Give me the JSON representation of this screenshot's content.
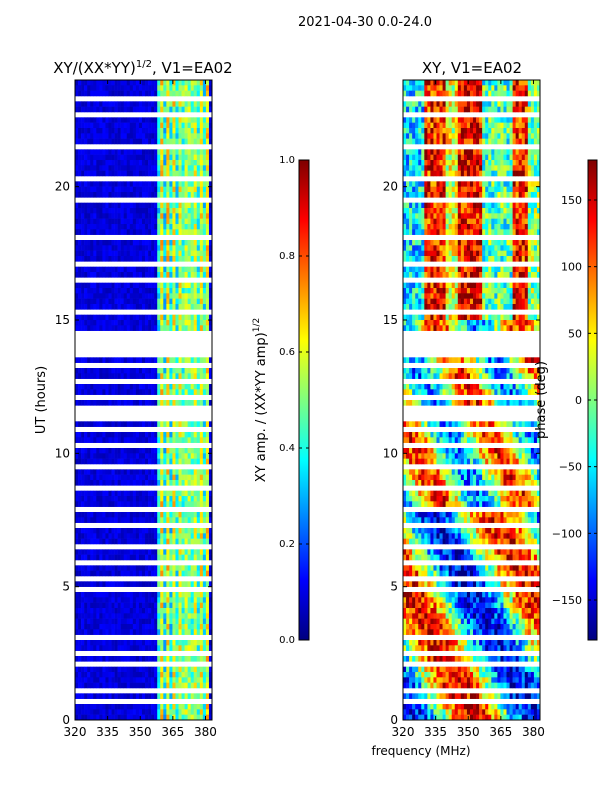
{
  "suptitle": "2021-04-30 0.0-24.0",
  "shared_xlabel": "frequency (MHz)",
  "chart_data": [
    {
      "type": "heatmap",
      "title_main": "XY/(XX*YY)",
      "title_sup": "1/2",
      "title_rest": ", V1=EA02",
      "ylabel": "UT (hours)",
      "xlim": [
        320,
        383
      ],
      "ylim": [
        0,
        24
      ],
      "xticks": [
        320,
        335,
        350,
        365,
        380
      ],
      "xtick_labels": [
        "320",
        "335",
        "350",
        "365",
        "380"
      ],
      "yticks": [
        0,
        5,
        10,
        15,
        20
      ],
      "ytick_labels": [
        "0",
        "5",
        "10",
        "15",
        "20"
      ],
      "colorbar": {
        "label_main": "XY amp. / (XX*YY amp)",
        "label_sup": "1/2",
        "range": [
          0.0,
          1.0
        ],
        "ticks": [
          0.0,
          0.2,
          0.4,
          0.6,
          0.8,
          1.0
        ],
        "tick_labels": [
          "0.0",
          "0.2",
          "0.4",
          "0.6",
          "0.8",
          "1.0"
        ],
        "colormap": "jet"
      },
      "data_gaps_hours": [
        [
          13.55,
          14.65
        ],
        [
          11.3,
          11.7
        ],
        [
          9.4,
          9.6
        ]
      ],
      "description_bands": [
        {
          "freq_range": [
            359,
            381
          ],
          "value_range": [
            0.3,
            0.65
          ]
        }
      ]
    },
    {
      "type": "heatmap",
      "title_main": "XY, V1=EA02",
      "ylabel": "",
      "xlim": [
        320,
        383
      ],
      "ylim": [
        0,
        24
      ],
      "xticks": [
        320,
        335,
        350,
        365,
        380
      ],
      "xtick_labels": [
        "320",
        "335",
        "350",
        "365",
        "380"
      ],
      "yticks": [
        0,
        5,
        10,
        15,
        20
      ],
      "ytick_labels": [
        "0",
        "5",
        "10",
        "15",
        "20"
      ],
      "colorbar": {
        "label_main": "phase (deg)",
        "range": [
          -180,
          180
        ],
        "ticks": [
          -150,
          -100,
          -50,
          0,
          50,
          100,
          150
        ],
        "tick_labels": [
          "−150",
          "−100",
          "−50",
          "0",
          "50",
          "100",
          "150"
        ],
        "colormap": "jet"
      },
      "data_gaps_hours": [
        [
          13.55,
          14.65
        ],
        [
          11.3,
          11.7
        ],
        [
          9.4,
          9.6
        ]
      ]
    }
  ]
}
